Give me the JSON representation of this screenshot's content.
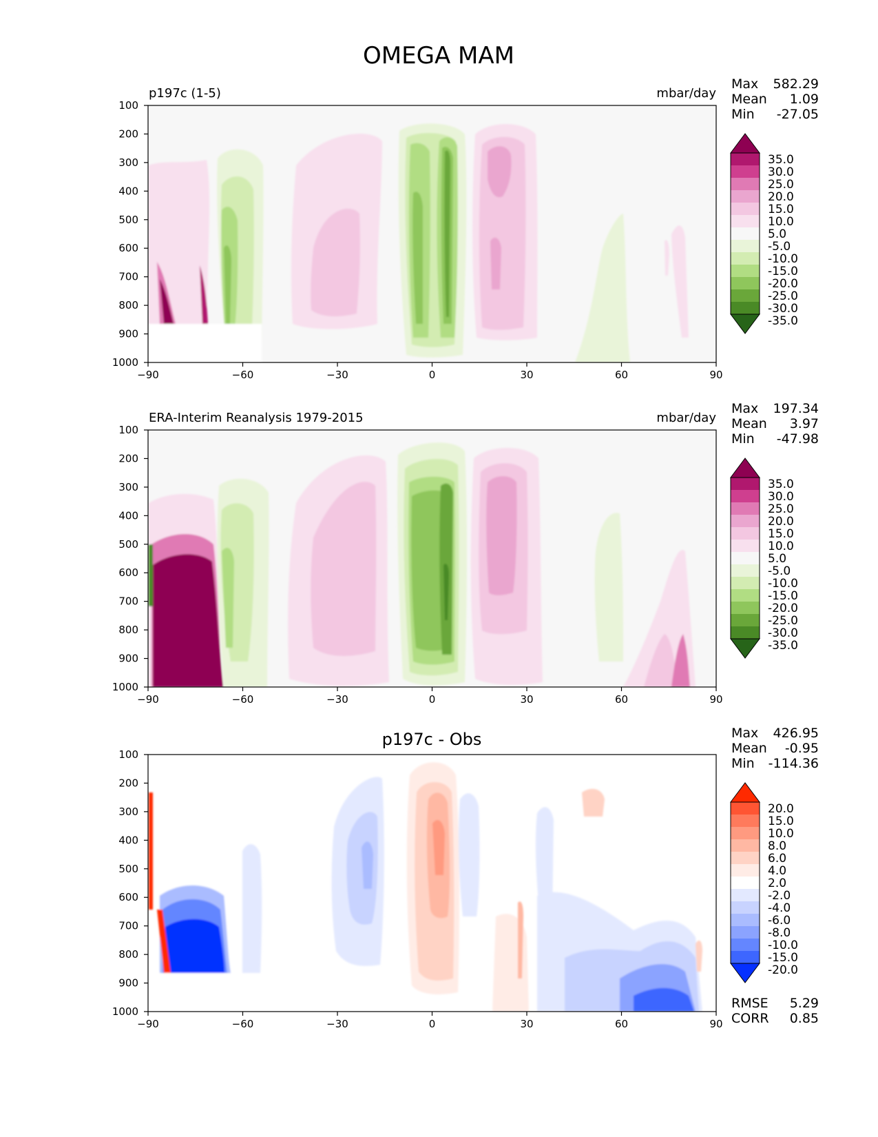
{
  "title": "OMEGA MAM",
  "chart_data": [
    {
      "type": "heatmap",
      "title": "",
      "left_label": "p197c (1-5)",
      "units": "mbar/day",
      "x_ticks": [
        -90,
        -60,
        -30,
        0,
        30,
        60,
        90
      ],
      "y_ticks": [
        100,
        200,
        300,
        400,
        500,
        600,
        700,
        800,
        900,
        1000
      ],
      "xlim": [
        -90,
        90
      ],
      "ylim": [
        1000,
        100
      ],
      "stats": {
        "max_label": "Max",
        "max": "582.29",
        "mean_label": "Mean",
        "mean": "1.09",
        "min_label": "Min",
        "min": "-27.05"
      },
      "colorbar": {
        "labels": [
          "35.0",
          "30.0",
          "25.0",
          "20.0",
          "15.0",
          "10.0",
          "5.0",
          "-5.0",
          "-10.0",
          "-15.0",
          "-20.0",
          "-25.0",
          "-30.0",
          "-35.0"
        ],
        "colors": [
          "#8e0152",
          "#b0186e",
          "#cf3f8f",
          "#e07ab4",
          "#eaa6cf",
          "#f3c7e1",
          "#f8e0ee",
          "#f7f7f7",
          "#e9f4d9",
          "#d3ecb2",
          "#b1dd83",
          "#8fc65c",
          "#6aa73a",
          "#4a8a26",
          "#276419"
        ]
      }
    },
    {
      "type": "heatmap",
      "title": "",
      "left_label": "ERA-Interim Reanalysis 1979-2015",
      "units": "mbar/day",
      "x_ticks": [
        -90,
        -60,
        -30,
        0,
        30,
        60,
        90
      ],
      "y_ticks": [
        100,
        200,
        300,
        400,
        500,
        600,
        700,
        800,
        900,
        1000
      ],
      "xlim": [
        -90,
        90
      ],
      "ylim": [
        1000,
        100
      ],
      "stats": {
        "max_label": "Max",
        "max": "197.34",
        "mean_label": "Mean",
        "mean": "3.97",
        "min_label": "Min",
        "min": "-47.98"
      },
      "colorbar": {
        "labels": [
          "35.0",
          "30.0",
          "25.0",
          "20.0",
          "15.0",
          "10.0",
          "5.0",
          "-5.0",
          "-10.0",
          "-15.0",
          "-20.0",
          "-25.0",
          "-30.0",
          "-35.0"
        ],
        "colors": [
          "#8e0152",
          "#b0186e",
          "#cf3f8f",
          "#e07ab4",
          "#eaa6cf",
          "#f3c7e1",
          "#f8e0ee",
          "#f7f7f7",
          "#e9f4d9",
          "#d3ecb2",
          "#b1dd83",
          "#8fc65c",
          "#6aa73a",
          "#4a8a26",
          "#276419"
        ]
      }
    },
    {
      "type": "heatmap",
      "title": "p197c - Obs",
      "left_label": "",
      "units": "",
      "x_ticks": [
        -90,
        -60,
        -30,
        0,
        30,
        60,
        90
      ],
      "y_ticks": [
        100,
        200,
        300,
        400,
        500,
        600,
        700,
        800,
        900,
        1000
      ],
      "xlim": [
        -90,
        90
      ],
      "ylim": [
        1000,
        100
      ],
      "stats": {
        "max_label": "Max",
        "max": "426.95",
        "mean_label": "Mean",
        "mean": "-0.95",
        "min_label": "Min",
        "min": "-114.36"
      },
      "extra_stats": {
        "rmse_label": "RMSE",
        "rmse": "5.29",
        "corr_label": "CORR",
        "corr": "0.85"
      },
      "colorbar": {
        "labels": [
          "20.0",
          "15.0",
          "10.0",
          "8.0",
          "6.0",
          "4.0",
          "2.0",
          "-2.0",
          "-4.0",
          "-6.0",
          "-8.0",
          "-10.0",
          "-15.0",
          "-20.0"
        ],
        "colors": [
          "#ff2a00",
          "#ff5533",
          "#ff7a5c",
          "#ff9a80",
          "#ffb8a3",
          "#ffd3c5",
          "#ffecE6",
          "#ffffff",
          "#e3e9ff",
          "#c8d3ff",
          "#aabcff",
          "#8ba3ff",
          "#6486ff",
          "#3d66ff",
          "#0530ff"
        ]
      }
    }
  ]
}
